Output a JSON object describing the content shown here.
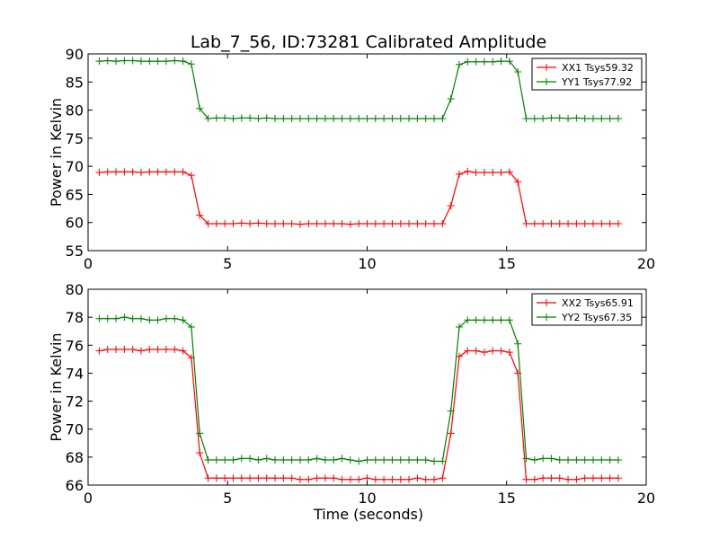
{
  "figure": {
    "title": "Lab_7_56, ID:73281 Calibrated Amplitude",
    "xlabel": "Time (seconds)"
  },
  "chart_data": [
    {
      "type": "line",
      "ylabel": "Power in Kelvin",
      "xlim": [
        0,
        20
      ],
      "ylim": [
        55,
        90
      ],
      "xticks": [
        0,
        5,
        10,
        15,
        20
      ],
      "yticks": [
        55,
        60,
        65,
        70,
        75,
        80,
        85,
        90
      ],
      "legend_position": "top-right",
      "grid": false,
      "series": [
        {
          "name": "XX1 Tsys59.32",
          "color": "#ff0000",
          "x": [
            0.4,
            0.7,
            1.0,
            1.3,
            1.6,
            1.9,
            2.2,
            2.5,
            2.8,
            3.1,
            3.4,
            3.7,
            4.0,
            4.3,
            4.6,
            4.9,
            5.2,
            5.5,
            5.8,
            6.1,
            6.4,
            6.7,
            7.0,
            7.3,
            7.6,
            7.9,
            8.2,
            8.5,
            8.8,
            9.1,
            9.4,
            9.7,
            10.0,
            10.3,
            10.6,
            10.9,
            11.2,
            11.5,
            11.8,
            12.1,
            12.4,
            12.7,
            13.0,
            13.3,
            13.6,
            13.9,
            14.2,
            14.5,
            14.8,
            15.1,
            15.4,
            15.7,
            16.0,
            16.3,
            16.6,
            16.9,
            17.2,
            17.5,
            17.8,
            18.1,
            18.4,
            18.7,
            19.0
          ],
          "y": [
            68.9,
            69.0,
            69.0,
            69.0,
            69.0,
            68.9,
            69.0,
            69.0,
            69.0,
            69.0,
            69.0,
            68.4,
            61.3,
            59.8,
            59.8,
            59.8,
            59.8,
            59.9,
            59.8,
            59.9,
            59.8,
            59.8,
            59.8,
            59.8,
            59.7,
            59.8,
            59.8,
            59.8,
            59.8,
            59.8,
            59.7,
            59.8,
            59.8,
            59.8,
            59.8,
            59.8,
            59.8,
            59.8,
            59.8,
            59.8,
            59.8,
            59.8,
            63.0,
            68.6,
            69.1,
            68.9,
            68.9,
            68.9,
            68.9,
            69.0,
            67.2,
            59.8,
            59.8,
            59.8,
            59.8,
            59.8,
            59.8,
            59.8,
            59.8,
            59.8,
            59.8,
            59.8,
            59.8
          ]
        },
        {
          "name": "YY1 Tsys77.92",
          "color": "#008000",
          "x": [
            0.4,
            0.7,
            1.0,
            1.3,
            1.6,
            1.9,
            2.2,
            2.5,
            2.8,
            3.1,
            3.4,
            3.7,
            4.0,
            4.3,
            4.6,
            4.9,
            5.2,
            5.5,
            5.8,
            6.1,
            6.4,
            6.7,
            7.0,
            7.3,
            7.6,
            7.9,
            8.2,
            8.5,
            8.8,
            9.1,
            9.4,
            9.7,
            10.0,
            10.3,
            10.6,
            10.9,
            11.2,
            11.5,
            11.8,
            12.1,
            12.4,
            12.7,
            13.0,
            13.3,
            13.6,
            13.9,
            14.2,
            14.5,
            14.8,
            15.1,
            15.4,
            15.7,
            16.0,
            16.3,
            16.6,
            16.9,
            17.2,
            17.5,
            17.8,
            18.1,
            18.4,
            18.7,
            19.0
          ],
          "y": [
            88.7,
            88.8,
            88.7,
            88.8,
            88.8,
            88.7,
            88.7,
            88.7,
            88.7,
            88.8,
            88.7,
            88.2,
            80.3,
            78.5,
            78.6,
            78.6,
            78.5,
            78.6,
            78.6,
            78.5,
            78.6,
            78.5,
            78.5,
            78.5,
            78.5,
            78.5,
            78.5,
            78.5,
            78.5,
            78.5,
            78.5,
            78.5,
            78.5,
            78.5,
            78.5,
            78.5,
            78.5,
            78.5,
            78.5,
            78.5,
            78.5,
            78.5,
            82.0,
            88.1,
            88.6,
            88.6,
            88.6,
            88.6,
            88.7,
            88.7,
            86.8,
            78.5,
            78.5,
            78.5,
            78.6,
            78.6,
            78.5,
            78.6,
            78.5,
            78.5,
            78.5,
            78.5,
            78.5
          ]
        }
      ]
    },
    {
      "type": "line",
      "ylabel": "Power in Kelvin",
      "xlabel": "Time (seconds)",
      "xlim": [
        0,
        20
      ],
      "ylim": [
        66,
        80
      ],
      "xticks": [
        0,
        5,
        10,
        15,
        20
      ],
      "yticks": [
        66,
        68,
        70,
        72,
        74,
        76,
        78,
        80
      ],
      "legend_position": "top-right",
      "grid": false,
      "series": [
        {
          "name": "XX2 Tsys65.91",
          "color": "#ff0000",
          "x": [
            0.4,
            0.7,
            1.0,
            1.3,
            1.6,
            1.9,
            2.2,
            2.5,
            2.8,
            3.1,
            3.4,
            3.7,
            4.0,
            4.3,
            4.6,
            4.9,
            5.2,
            5.5,
            5.8,
            6.1,
            6.4,
            6.7,
            7.0,
            7.3,
            7.6,
            7.9,
            8.2,
            8.5,
            8.8,
            9.1,
            9.4,
            9.7,
            10.0,
            10.3,
            10.6,
            10.9,
            11.2,
            11.5,
            11.8,
            12.1,
            12.4,
            12.7,
            13.0,
            13.3,
            13.6,
            13.9,
            14.2,
            14.5,
            14.8,
            15.1,
            15.4,
            15.7,
            16.0,
            16.3,
            16.6,
            16.9,
            17.2,
            17.5,
            17.8,
            18.1,
            18.4,
            18.7,
            19.0
          ],
          "y": [
            75.6,
            75.7,
            75.7,
            75.7,
            75.7,
            75.6,
            75.7,
            75.7,
            75.7,
            75.7,
            75.6,
            75.1,
            68.3,
            66.5,
            66.5,
            66.5,
            66.5,
            66.5,
            66.5,
            66.5,
            66.5,
            66.5,
            66.5,
            66.5,
            66.4,
            66.4,
            66.5,
            66.5,
            66.5,
            66.4,
            66.4,
            66.4,
            66.5,
            66.4,
            66.4,
            66.4,
            66.4,
            66.4,
            66.5,
            66.4,
            66.4,
            66.5,
            69.7,
            75.2,
            75.6,
            75.6,
            75.5,
            75.6,
            75.6,
            75.5,
            74.0,
            66.4,
            66.4,
            66.5,
            66.5,
            66.5,
            66.4,
            66.4,
            66.5,
            66.5,
            66.5,
            66.5,
            66.5
          ]
        },
        {
          "name": "YY2 Tsys67.35",
          "color": "#008000",
          "x": [
            0.4,
            0.7,
            1.0,
            1.3,
            1.6,
            1.9,
            2.2,
            2.5,
            2.8,
            3.1,
            3.4,
            3.7,
            4.0,
            4.3,
            4.6,
            4.9,
            5.2,
            5.5,
            5.8,
            6.1,
            6.4,
            6.7,
            7.0,
            7.3,
            7.6,
            7.9,
            8.2,
            8.5,
            8.8,
            9.1,
            9.4,
            9.7,
            10.0,
            10.3,
            10.6,
            10.9,
            11.2,
            11.5,
            11.8,
            12.1,
            12.4,
            12.7,
            13.0,
            13.3,
            13.6,
            13.9,
            14.2,
            14.5,
            14.8,
            15.1,
            15.4,
            15.7,
            16.0,
            16.3,
            16.6,
            16.9,
            17.2,
            17.5,
            17.8,
            18.1,
            18.4,
            18.7,
            19.0
          ],
          "y": [
            77.9,
            77.9,
            77.9,
            78.0,
            77.9,
            77.9,
            77.8,
            77.8,
            77.9,
            77.9,
            77.8,
            77.3,
            69.7,
            67.8,
            67.8,
            67.8,
            67.8,
            67.9,
            67.9,
            67.8,
            67.9,
            67.8,
            67.8,
            67.8,
            67.8,
            67.8,
            67.9,
            67.8,
            67.8,
            67.9,
            67.8,
            67.7,
            67.8,
            67.8,
            67.8,
            67.8,
            67.8,
            67.8,
            67.8,
            67.8,
            67.7,
            67.7,
            71.3,
            77.3,
            77.8,
            77.8,
            77.8,
            77.8,
            77.8,
            77.8,
            76.1,
            67.9,
            67.8,
            67.9,
            67.9,
            67.8,
            67.8,
            67.8,
            67.8,
            67.8,
            67.8,
            67.8,
            67.8
          ]
        }
      ]
    }
  ]
}
